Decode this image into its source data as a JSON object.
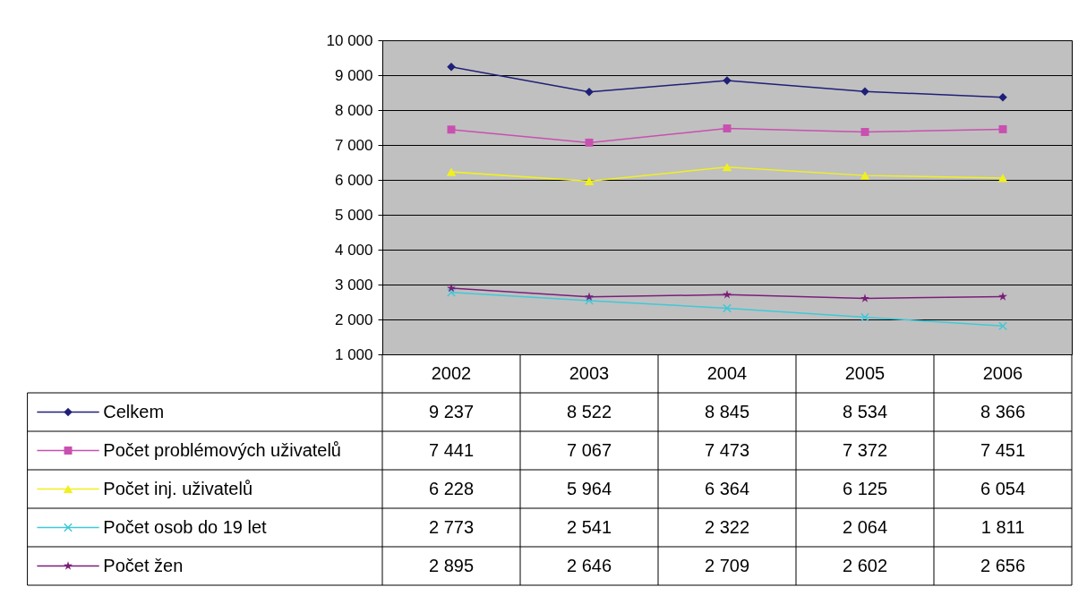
{
  "chart_data": {
    "type": "line",
    "categories": [
      "2002",
      "2003",
      "2004",
      "2005",
      "2006"
    ],
    "series": [
      {
        "name": "Celkem",
        "color": "#1f1f78",
        "marker": "diamond",
        "values": [
          9237,
          8522,
          8845,
          8534,
          8366
        ]
      },
      {
        "name": "Počet problémových uživatelů",
        "color": "#c850b0",
        "marker": "square",
        "values": [
          7441,
          7067,
          7473,
          7372,
          7451
        ]
      },
      {
        "name": "Počet inj. uživatelů",
        "color": "#f0f020",
        "marker": "triangle",
        "values": [
          6228,
          5964,
          6364,
          6125,
          6054
        ]
      },
      {
        "name": "Počet osob do 19 let",
        "color": "#40c8d8",
        "marker": "cross",
        "values": [
          2773,
          2541,
          2322,
          2064,
          1811
        ]
      },
      {
        "name": "Počet žen",
        "color": "#7a1e7a",
        "marker": "star",
        "values": [
          2895,
          2646,
          2709,
          2602,
          2656
        ]
      }
    ],
    "ylim": [
      1000,
      10000
    ],
    "yticks": [
      {
        "value": 1000,
        "label": "1 000"
      },
      {
        "value": 2000,
        "label": "2 000"
      },
      {
        "value": 3000,
        "label": "3 000"
      },
      {
        "value": 4000,
        "label": "4 000"
      },
      {
        "value": 5000,
        "label": "5 000"
      },
      {
        "value": 6000,
        "label": "6 000"
      },
      {
        "value": 7000,
        "label": "7 000"
      },
      {
        "value": 8000,
        "label": "8 000"
      },
      {
        "value": 9000,
        "label": "9 000"
      },
      {
        "value": 10000,
        "label": "10 000"
      }
    ],
    "grid": "y",
    "legend": "bottom",
    "data_labels": true,
    "line_style": "solid"
  }
}
